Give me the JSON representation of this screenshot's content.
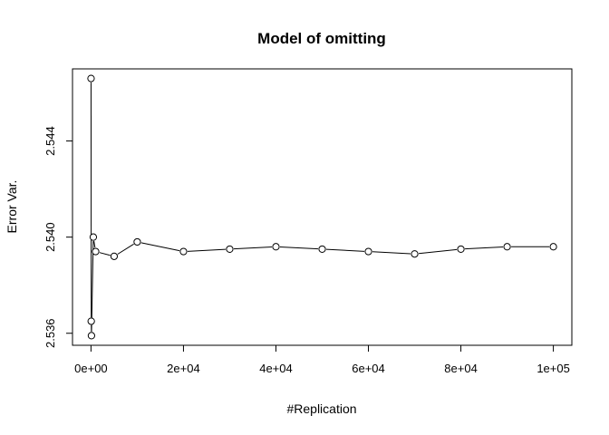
{
  "chart_data": {
    "type": "line",
    "title": "Model of omitting",
    "xlabel": "#Replication",
    "ylabel": "Error Var.",
    "xlim": [
      -4000,
      104000
    ],
    "ylim": [
      2.5355,
      2.547
    ],
    "xticks": [
      {
        "value": 0,
        "label": "0e+00"
      },
      {
        "value": 20000,
        "label": "2e+04"
      },
      {
        "value": 40000,
        "label": "4e+04"
      },
      {
        "value": 60000,
        "label": "6e+04"
      },
      {
        "value": 80000,
        "label": "8e+04"
      },
      {
        "value": 100000,
        "label": "1e+05"
      }
    ],
    "yticks": [
      {
        "value": 2.536,
        "label": "2.536"
      },
      {
        "value": 2.54,
        "label": "2.540"
      },
      {
        "value": 2.544,
        "label": "2.544"
      }
    ],
    "grid": false,
    "series": [
      {
        "x": [
          10,
          50,
          100,
          500,
          1000,
          5000,
          10000,
          20000,
          30000,
          40000,
          50000,
          60000,
          70000,
          80000,
          90000,
          100000
        ],
        "y": [
          2.5466,
          2.5365,
          2.5359,
          2.54,
          2.5394,
          2.5392,
          2.5398,
          2.5394,
          2.5395,
          2.5396,
          2.5395,
          2.5394,
          2.5393,
          2.5395,
          2.5396,
          2.5396
        ]
      }
    ]
  }
}
